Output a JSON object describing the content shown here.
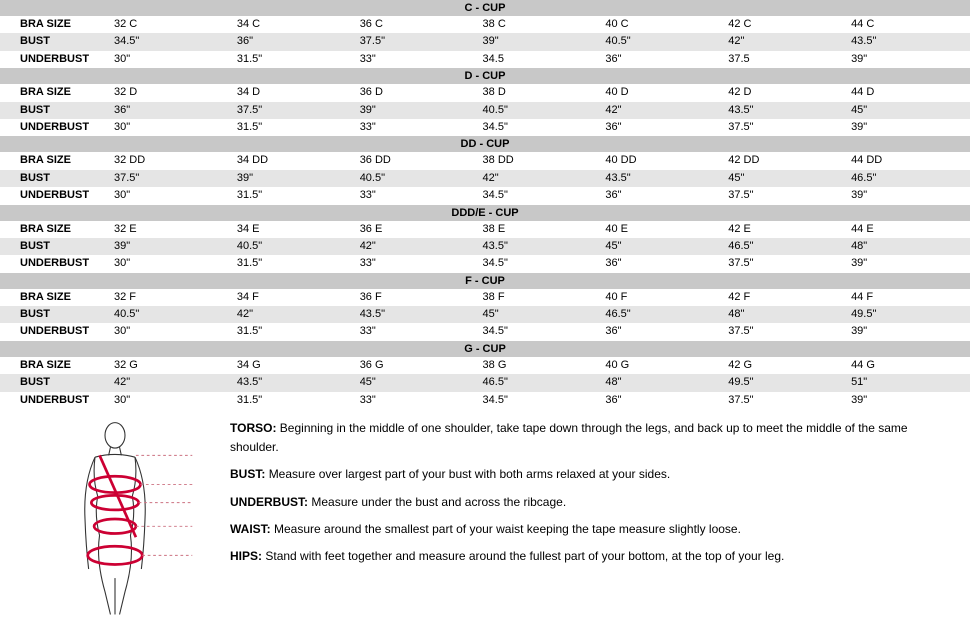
{
  "sections": [
    {
      "title": "C - CUP",
      "rows": [
        {
          "label": "BRA SIZE",
          "cells": [
            "32 C",
            "34 C",
            "36 C",
            "38 C",
            "40 C",
            "42 C",
            "44 C"
          ],
          "gray": false
        },
        {
          "label": "BUST",
          "cells": [
            "34.5\"",
            "36\"",
            "37.5\"",
            "39\"",
            "40.5\"",
            "42\"",
            "43.5\""
          ],
          "gray": true
        },
        {
          "label": "UNDERBUST",
          "cells": [
            "30\"",
            "31.5\"",
            "33\"",
            "34.5",
            "36\"",
            "37.5",
            "39\""
          ],
          "gray": false
        }
      ]
    },
    {
      "title": "D - CUP",
      "rows": [
        {
          "label": "BRA SIZE",
          "cells": [
            "32 D",
            "34 D",
            "36 D",
            "38 D",
            "40 D",
            "42 D",
            "44 D"
          ],
          "gray": false
        },
        {
          "label": "BUST",
          "cells": [
            "36\"",
            "37.5\"",
            "39\"",
            "40.5\"",
            "42\"",
            "43.5\"",
            "45\""
          ],
          "gray": true
        },
        {
          "label": "UNDERBUST",
          "cells": [
            "30\"",
            "31.5\"",
            "33\"",
            "34.5\"",
            "36\"",
            "37.5\"",
            "39\""
          ],
          "gray": false
        }
      ]
    },
    {
      "title": "DD - CUP",
      "rows": [
        {
          "label": "BRA SIZE",
          "cells": [
            "32 DD",
            "34 DD",
            "36 DD",
            "38 DD",
            "40 DD",
            "42 DD",
            "44 DD"
          ],
          "gray": false
        },
        {
          "label": "BUST",
          "cells": [
            "37.5\"",
            "39\"",
            "40.5\"",
            "42\"",
            "43.5\"",
            "45\"",
            "46.5\""
          ],
          "gray": true
        },
        {
          "label": "UNDERBUST",
          "cells": [
            "30\"",
            "31.5\"",
            "33\"",
            "34.5\"",
            "36\"",
            "37.5\"",
            "39\""
          ],
          "gray": false
        }
      ]
    },
    {
      "title": "DDD/E - CUP",
      "rows": [
        {
          "label": "BRA SIZE",
          "cells": [
            "32 E",
            "34 E",
            "36 E",
            "38 E",
            "40 E",
            "42 E",
            "44 E"
          ],
          "gray": false
        },
        {
          "label": "BUST",
          "cells": [
            "39\"",
            "40.5\"",
            "42\"",
            "43.5\"",
            "45\"",
            "46.5\"",
            "48\""
          ],
          "gray": true
        },
        {
          "label": "UNDERBUST",
          "cells": [
            "30\"",
            "31.5\"",
            "33\"",
            "34.5\"",
            "36\"",
            "37.5\"",
            "39\""
          ],
          "gray": false
        }
      ]
    },
    {
      "title": "F - CUP",
      "rows": [
        {
          "label": "BRA SIZE",
          "cells": [
            "32 F",
            "34 F",
            "36 F",
            "38 F",
            "40 F",
            "42 F",
            "44 F"
          ],
          "gray": false
        },
        {
          "label": "BUST",
          "cells": [
            "40.5\"",
            "42\"",
            "43.5\"",
            "45\"",
            "46.5\"",
            "48\"",
            "49.5\""
          ],
          "gray": true
        },
        {
          "label": "UNDERBUST",
          "cells": [
            "30\"",
            "31.5\"",
            "33\"",
            "34.5\"",
            "36\"",
            "37.5\"",
            "39\""
          ],
          "gray": false
        }
      ]
    },
    {
      "title": "G - CUP",
      "rows": [
        {
          "label": "BRA SIZE",
          "cells": [
            "32 G",
            "34 G",
            "36 G",
            "38 G",
            "40 G",
            "42 G",
            "44 G"
          ],
          "gray": false
        },
        {
          "label": "BUST",
          "cells": [
            "42\"",
            "43.5\"",
            "45\"",
            "46.5\"",
            "48\"",
            "49.5\"",
            "51\""
          ],
          "gray": true
        },
        {
          "label": "UNDERBUST",
          "cells": [
            "30\"",
            "31.5\"",
            "33\"",
            "34.5\"",
            "36\"",
            "37.5\"",
            "39\""
          ],
          "gray": false
        }
      ]
    }
  ],
  "instructions": {
    "torso": {
      "label": "TORSO:",
      "text": "Beginning in the middle of one shoulder, take tape down through the legs, and back up to meet the middle of the same shoulder."
    },
    "bust": {
      "label": "BUST:",
      "text": "Measure over largest part of your bust with both arms relaxed at your sides."
    },
    "underbust": {
      "label": "UNDERBUST:",
      "text": "Measure under the bust and across the ribcage."
    },
    "waist": {
      "label": "WAIST:",
      "text": "Measure around the smallest part of your waist keeping the tape measure slightly loose."
    },
    "hips": {
      "label": "HIPS:",
      "text": "Stand with feet together and measure around the fullest part of your bottom, at the top of your leg."
    }
  },
  "colors": {
    "header_bg": "#c8c8c8",
    "alt_row_bg": "#e5e5e5",
    "tape_color": "#cc0033"
  }
}
